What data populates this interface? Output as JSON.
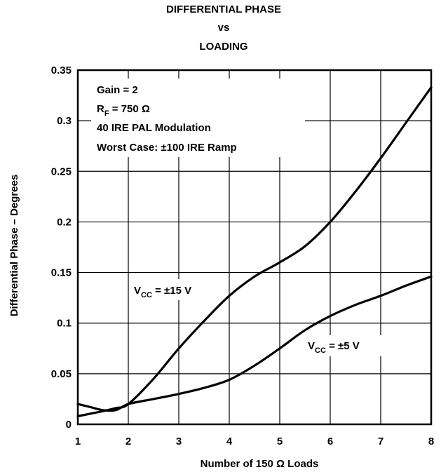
{
  "chart_data": {
    "type": "line",
    "title_lines": [
      "DIFFERENTIAL PHASE",
      "vs",
      "LOADING"
    ],
    "xlabel": "Number of 150 Ω Loads",
    "ylabel": "Differential Phase – Degrees",
    "xlim": [
      1,
      8
    ],
    "ylim": [
      0,
      0.35
    ],
    "x_ticks": [
      1,
      2,
      3,
      4,
      5,
      6,
      7,
      8
    ],
    "y_ticks": [
      0,
      0.05,
      0.1,
      0.15,
      0.2,
      0.25,
      0.3,
      0.35
    ],
    "grid": true,
    "annotation": {
      "line1": "Gain = 2",
      "line2_main": "R",
      "line2_sub": "F",
      "line2_rest": " = 750 Ω",
      "line3": "40 IRE PAL Modulation",
      "line4": "Worst Case: ±100 IRE Ramp"
    },
    "series": [
      {
        "name": "VCC = ±15 V",
        "label_main": "V",
        "label_sub": "CC",
        "label_rest": " = ±15 V",
        "x": [
          1.0,
          1.3,
          1.5,
          1.75,
          2.0,
          2.5,
          3.0,
          3.5,
          4.0,
          4.5,
          5.0,
          5.5,
          6.0,
          6.5,
          7.0,
          7.5,
          8.0
        ],
        "y": [
          0.008,
          0.011,
          0.013,
          0.016,
          0.02,
          0.045,
          0.075,
          0.102,
          0.127,
          0.146,
          0.16,
          0.176,
          0.2,
          0.23,
          0.263,
          0.298,
          0.333
        ]
      },
      {
        "name": "VCC = ±5 V",
        "label_main": "V",
        "label_sub": "CC",
        "label_rest": " = ±5 V",
        "x": [
          1.0,
          1.25,
          1.5,
          1.75,
          2.0,
          2.5,
          3.0,
          3.5,
          4.0,
          4.5,
          5.0,
          5.5,
          6.0,
          6.5,
          7.0,
          7.5,
          8.0
        ],
        "y": [
          0.02,
          0.017,
          0.014,
          0.014,
          0.02,
          0.025,
          0.03,
          0.036,
          0.044,
          0.058,
          0.075,
          0.093,
          0.107,
          0.118,
          0.127,
          0.137,
          0.146
        ]
      }
    ]
  }
}
